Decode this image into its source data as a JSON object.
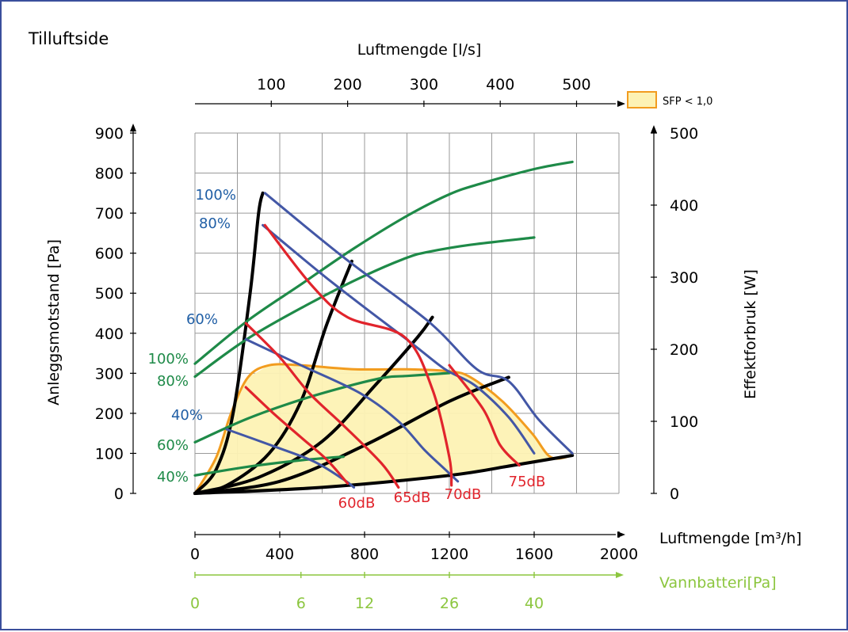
{
  "panel_title": "Tilluftside",
  "colors": {
    "frame": "#3a4e9c",
    "grid": "#9a9a9a",
    "blue_curve": "#4357a6",
    "blue_label": "#1f5ea5",
    "green_curve": "#1e8a48",
    "green_label": "#1e8a48",
    "red_curve": "#e1242c",
    "red_label": "#e1242c",
    "black_curve": "#000000",
    "sfp_stroke": "#f29c1f",
    "sfp_fill": "#fdf2b4",
    "water_axis": "#8cc63f"
  },
  "chart_data": {
    "type": "line",
    "title": "Tilluftside",
    "x_axis": {
      "label": "Luftmengde [m³/h]",
      "ticks": [
        "0",
        "400",
        "800",
        "1200",
        "1600",
        "2000"
      ],
      "range": [
        0,
        2000
      ]
    },
    "x_axis_top": {
      "label": "Luftmengde [l/s]",
      "ticks": [
        {
          "label": "100",
          "m3h": 360
        },
        {
          "label": "200",
          "m3h": 720
        },
        {
          "label": "300",
          "m3h": 1080
        },
        {
          "label": "400",
          "m3h": 1440
        },
        {
          "label": "500",
          "m3h": 1800
        }
      ]
    },
    "x_axis_water": {
      "label": "Vannbatteri[Pa]",
      "ticks": [
        {
          "label": "0",
          "m3h": 0
        },
        {
          "label": "6",
          "m3h": 500
        },
        {
          "label": "12",
          "m3h": 800
        },
        {
          "label": "26",
          "m3h": 1200
        },
        {
          "label": "40",
          "m3h": 1600
        }
      ]
    },
    "y_axis_left": {
      "label": "Anleggsmotstand [Pa]",
      "ticks": [
        "0",
        "100",
        "200",
        "300",
        "400",
        "500",
        "600",
        "700",
        "800",
        "900"
      ],
      "range": [
        0,
        900
      ]
    },
    "y_axis_right": {
      "label": "Effektforbruk [W]",
      "ticks": [
        "0",
        "100",
        "200",
        "300",
        "400",
        "500"
      ],
      "range": [
        0,
        500
      ]
    },
    "grid": true,
    "legend": {
      "position": "top-right",
      "items": [
        {
          "label": "SFP < 1,0"
        }
      ]
    },
    "fan_curves": [
      {
        "label": "100%",
        "points": [
          [
            330,
            750
          ],
          [
            700,
            590
          ],
          [
            1100,
            430
          ],
          [
            1330,
            310
          ],
          [
            1480,
            280
          ],
          [
            1620,
            185
          ],
          [
            1780,
            100
          ]
        ]
      },
      {
        "label": "80%",
        "points": [
          [
            320,
            670
          ],
          [
            640,
            530
          ],
          [
            1010,
            380
          ],
          [
            1180,
            310
          ],
          [
            1320,
            270
          ],
          [
            1480,
            190
          ],
          [
            1600,
            100
          ]
        ]
      },
      {
        "label": "60%",
        "points": [
          [
            240,
            385
          ],
          [
            500,
            320
          ],
          [
            780,
            250
          ],
          [
            960,
            180
          ],
          [
            1080,
            110
          ],
          [
            1180,
            60
          ],
          [
            1240,
            30
          ]
        ]
      },
      {
        "label": "40%",
        "points": [
          [
            150,
            160
          ],
          [
            360,
            120
          ],
          [
            560,
            80
          ],
          [
            700,
            35
          ],
          [
            750,
            15
          ]
        ]
      }
    ],
    "power_curves": [
      {
        "label": "100%",
        "points": [
          [
            0,
            180
          ],
          [
            250,
            240
          ],
          [
            500,
            290
          ],
          [
            750,
            340
          ],
          [
            1000,
            385
          ],
          [
            1200,
            415
          ],
          [
            1350,
            430
          ],
          [
            1600,
            450
          ],
          [
            1780,
            460
          ]
        ]
      },
      {
        "label": "80%",
        "points": [
          [
            0,
            162
          ],
          [
            250,
            215
          ],
          [
            550,
            265
          ],
          [
            800,
            302
          ],
          [
            1000,
            327
          ],
          [
            1100,
            335
          ],
          [
            1300,
            345
          ],
          [
            1600,
            355
          ]
        ]
      },
      {
        "label": "60%",
        "points": [
          [
            0,
            71
          ],
          [
            250,
            104
          ],
          [
            500,
            130
          ],
          [
            750,
            151
          ],
          [
            900,
            161
          ],
          [
            1000,
            163
          ],
          [
            1200,
            167
          ]
        ]
      },
      {
        "label": "40%",
        "points": [
          [
            0,
            25
          ],
          [
            250,
            37
          ],
          [
            500,
            46
          ],
          [
            700,
            51
          ]
        ]
      }
    ],
    "sound_curves": [
      {
        "label": "60dB",
        "points": [
          [
            240,
            265
          ],
          [
            370,
            200
          ],
          [
            500,
            140
          ],
          [
            620,
            85
          ],
          [
            720,
            25
          ]
        ]
      },
      {
        "label": "65dB",
        "points": [
          [
            240,
            425
          ],
          [
            400,
            340
          ],
          [
            540,
            250
          ],
          [
            700,
            170
          ],
          [
            880,
            75
          ],
          [
            960,
            15
          ]
        ]
      },
      {
        "label": "70dB",
        "points": [
          [
            330,
            670
          ],
          [
            550,
            520
          ],
          [
            720,
            440
          ],
          [
            990,
            390
          ],
          [
            1120,
            260
          ],
          [
            1200,
            90
          ],
          [
            1210,
            20
          ]
        ]
      },
      {
        "label": "75dB",
        "points": [
          [
            1200,
            320
          ],
          [
            1360,
            210
          ],
          [
            1440,
            120
          ],
          [
            1530,
            70
          ]
        ]
      }
    ],
    "system_curves": [
      {
        "points": [
          [
            0,
            0
          ],
          [
            100,
            60
          ],
          [
            180,
            200
          ],
          [
            260,
            500
          ],
          [
            300,
            700
          ],
          [
            320,
            750
          ]
        ]
      },
      {
        "points": [
          [
            0,
            0
          ],
          [
            150,
            20
          ],
          [
            350,
            100
          ],
          [
            500,
            230
          ],
          [
            620,
            420
          ],
          [
            740,
            580
          ]
        ]
      },
      {
        "points": [
          [
            0,
            0
          ],
          [
            300,
            40
          ],
          [
            600,
            130
          ],
          [
            850,
            270
          ],
          [
            1050,
            390
          ],
          [
            1120,
            440
          ]
        ]
      },
      {
        "points": [
          [
            0,
            0
          ],
          [
            400,
            30
          ],
          [
            800,
            120
          ],
          [
            1200,
            230
          ],
          [
            1480,
            290
          ]
        ]
      },
      {
        "points": [
          [
            0,
            0
          ],
          [
            600,
            15
          ],
          [
            1200,
            45
          ],
          [
            1500,
            70
          ],
          [
            1780,
            95
          ]
        ]
      }
    ],
    "sfp_region": {
      "label": "SFP < 1,0",
      "points": [
        [
          0,
          0
        ],
        [
          100,
          90
        ],
        [
          170,
          200
        ],
        [
          250,
          290
        ],
        [
          350,
          320
        ],
        [
          500,
          320
        ],
        [
          750,
          310
        ],
        [
          1000,
          310
        ],
        [
          1200,
          305
        ],
        [
          1300,
          290
        ],
        [
          1450,
          230
        ],
        [
          1590,
          150
        ],
        [
          1680,
          90
        ],
        [
          1780,
          95
        ],
        [
          1500,
          70
        ],
        [
          1200,
          45
        ],
        [
          600,
          15
        ],
        [
          0,
          0
        ]
      ]
    }
  }
}
